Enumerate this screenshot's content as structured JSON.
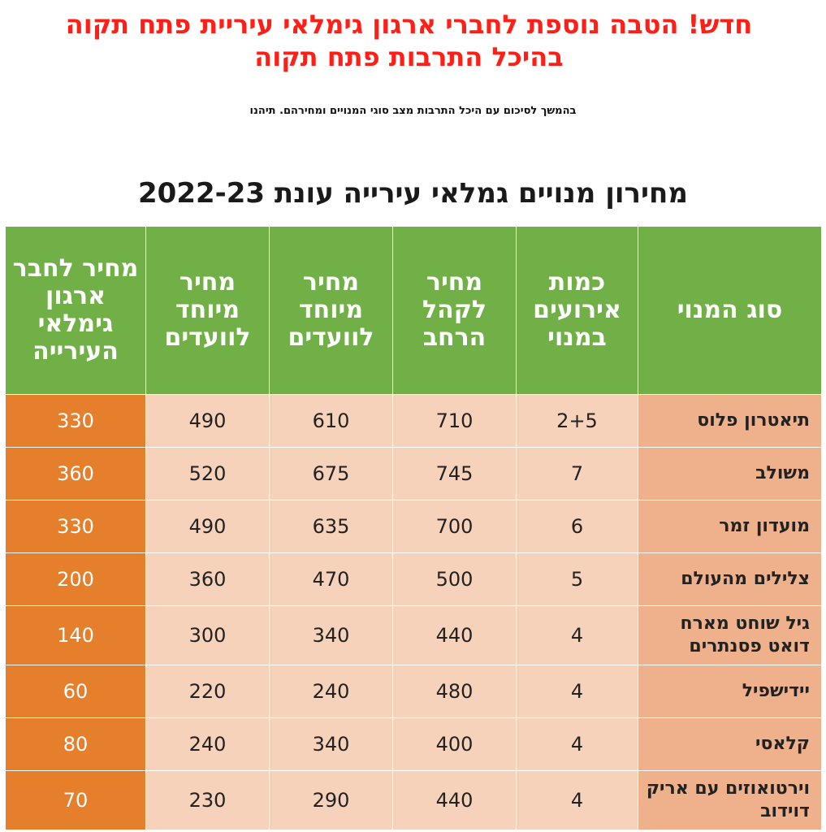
{
  "headline": {
    "line1": "חדש! הטבה נוספת לחברי ארגון גימלאי עיריית פתח תקוה",
    "line2": "בהיכל התרבות פתח תקוה"
  },
  "subline": "בהמשך לסיכום עם היכל התרבות מצב סוגי המנויים ומחירהם. תיהנו",
  "table_title": "מחירון מנויים גמלאי עירייה עונת 2022-23",
  "columns": [
    "סוג המנוי",
    "כמות אירועים במנוי",
    "מחיר לקהל הרחב",
    "מחיר מיוחד לוועדים",
    "מחיר מיוחד לוועדים",
    "מחיר לחבר ארגון גימלאי העירייה"
  ],
  "rows": [
    {
      "type": "תיאטרון פלוס",
      "events": "2+5",
      "public": "710",
      "committee1": "610",
      "committee2": "490",
      "member": "330"
    },
    {
      "type": "משולב",
      "events": "7",
      "public": "745",
      "committee1": "675",
      "committee2": "520",
      "member": "360"
    },
    {
      "type": "מועדון זמר",
      "events": "6",
      "public": "700",
      "committee1": "635",
      "committee2": "490",
      "member": "330"
    },
    {
      "type": "צלילים מהעולם",
      "events": "5",
      "public": "500",
      "committee1": "470",
      "committee2": "360",
      "member": "200"
    },
    {
      "type": "גיל שוחט מארח דואט פסנתרים",
      "events": "4",
      "public": "440",
      "committee1": "340",
      "committee2": "300",
      "member": "140"
    },
    {
      "type": "יידישפיל",
      "events": "4",
      "public": "480",
      "committee1": "240",
      "committee2": "220",
      "member": "60"
    },
    {
      "type": "קלאסי",
      "events": "4",
      "public": "400",
      "committee1": "340",
      "committee2": "240",
      "member": "80"
    },
    {
      "type": "וירטואוזים עם אריק דוידוב",
      "events": "4",
      "public": "440",
      "committee1": "290",
      "committee2": "230",
      "member": "70"
    }
  ],
  "colors": {
    "headline": "#ff1f17",
    "header_green": "#71b046",
    "type_cell": "#efb18c",
    "value_cell": "#f7d2bb",
    "member_cell": "#e57f2c"
  }
}
